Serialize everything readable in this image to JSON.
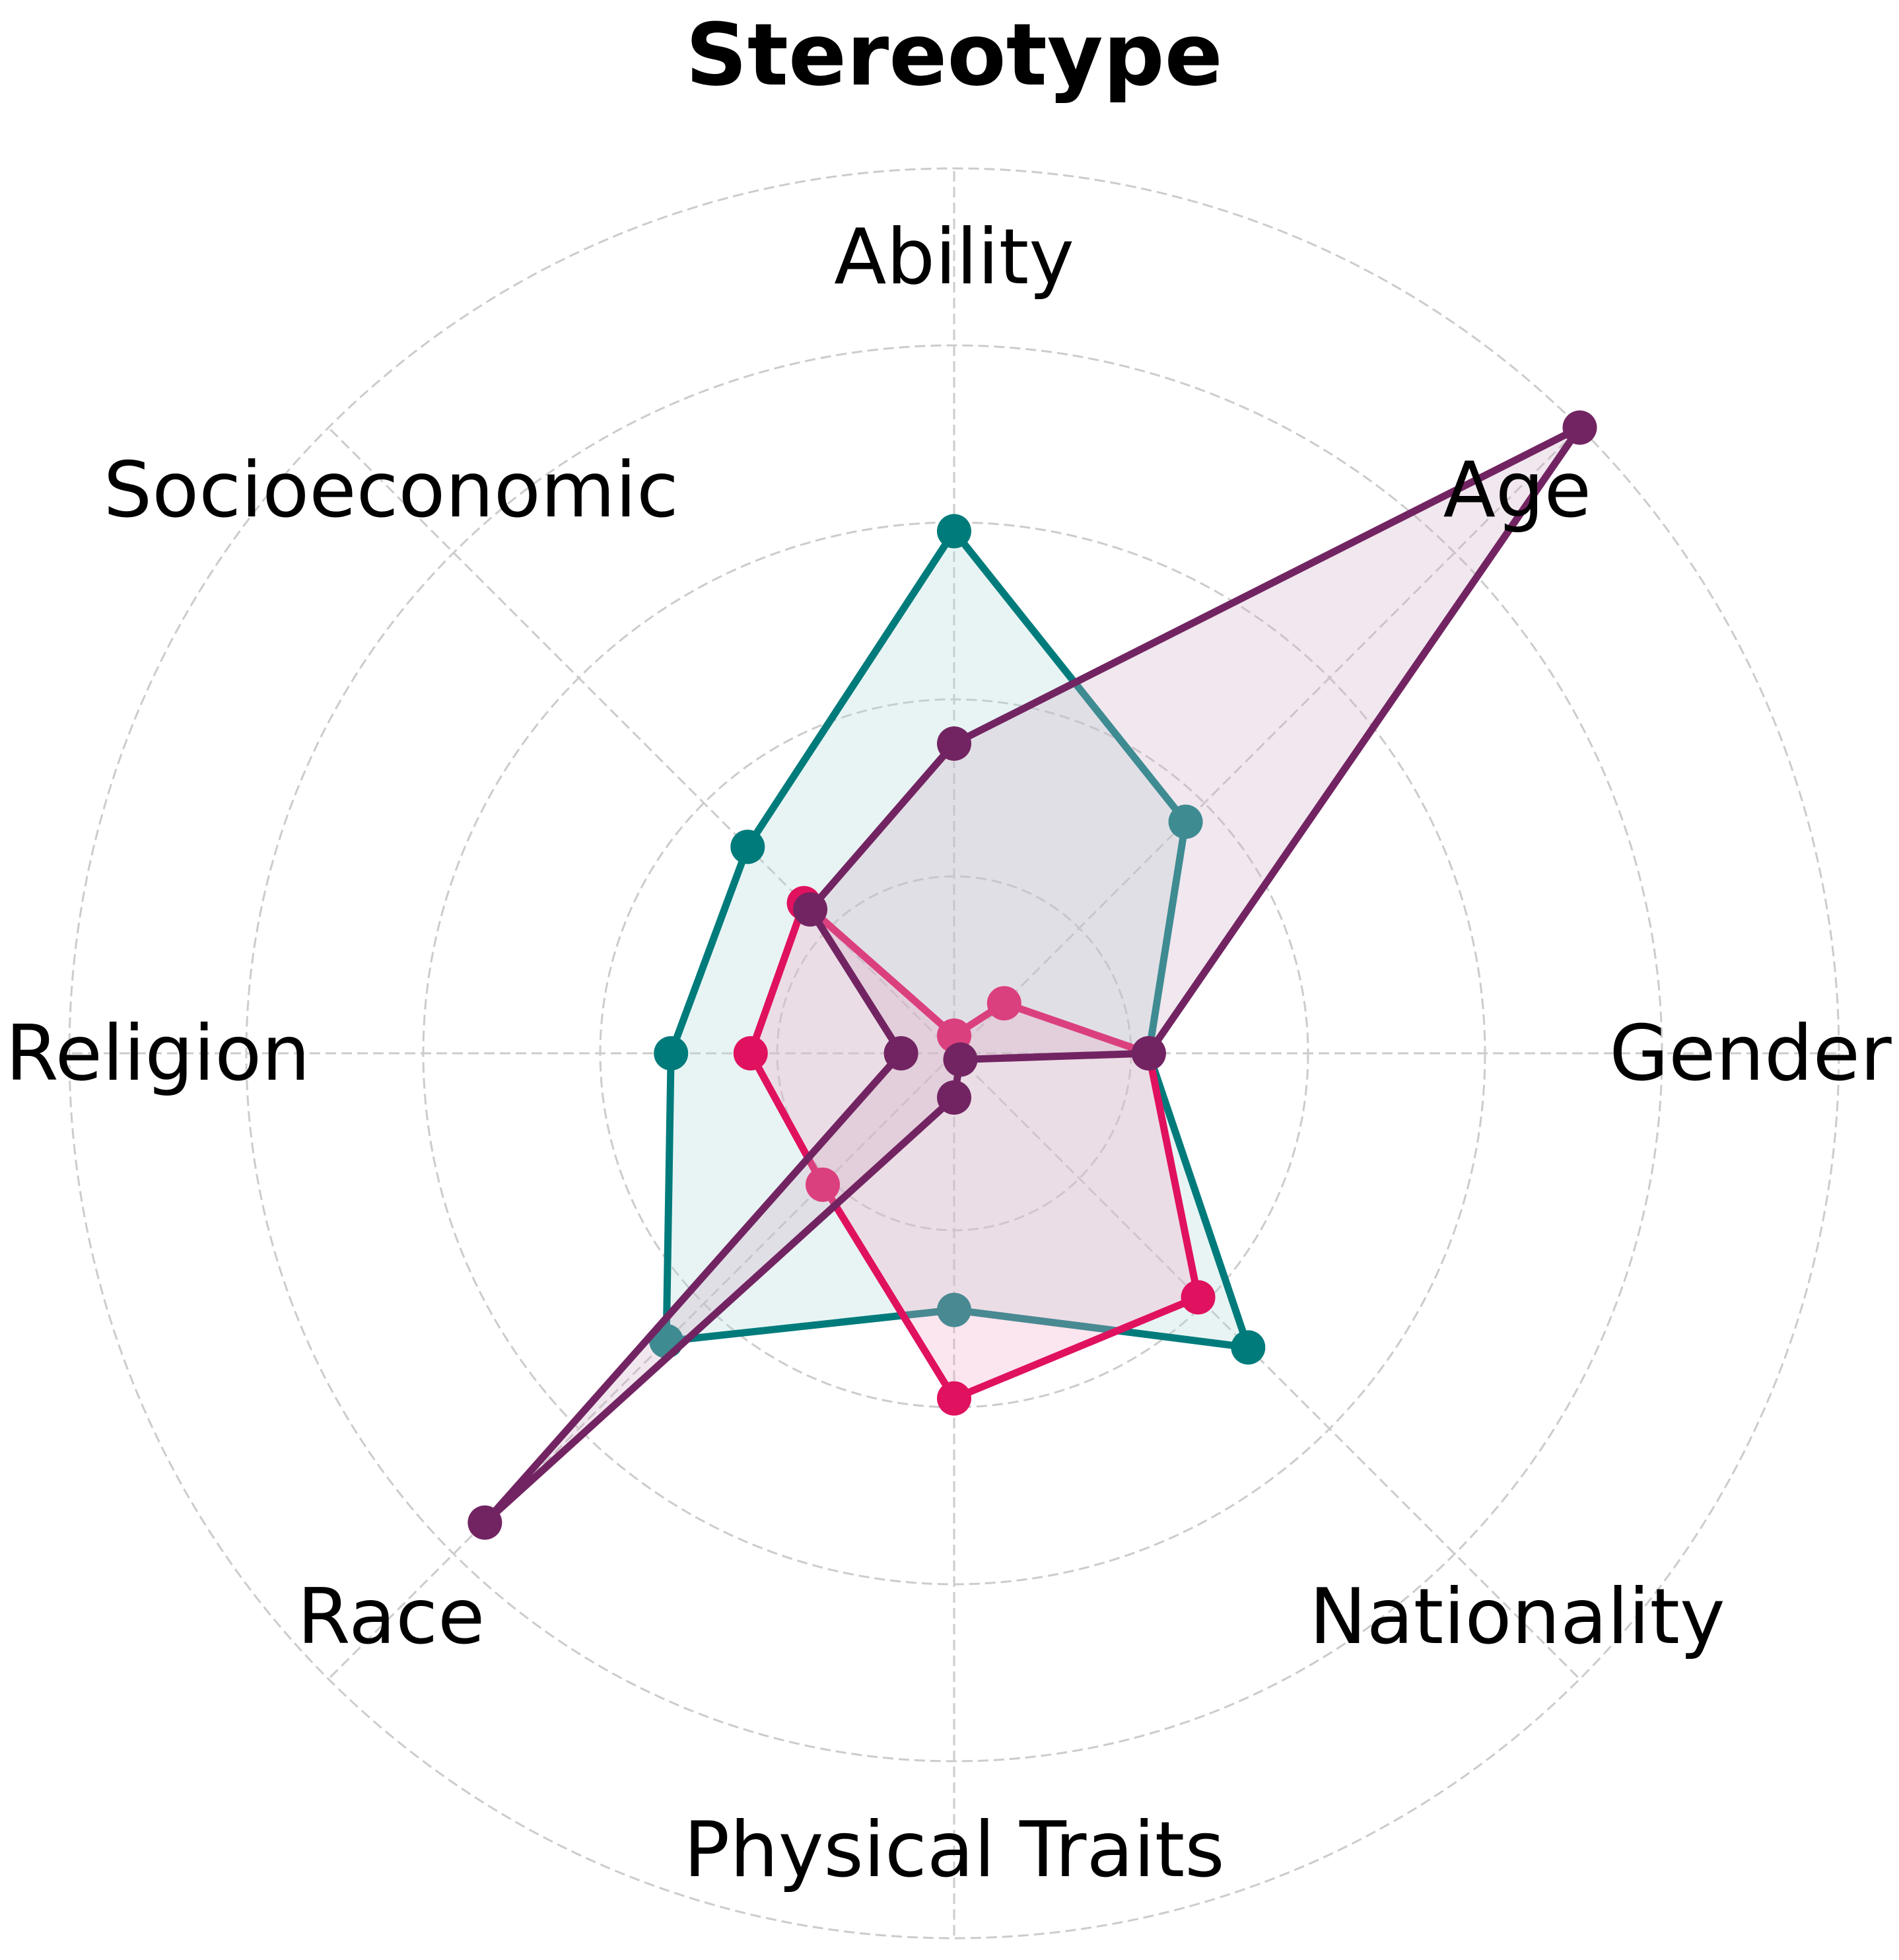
{
  "chart_data": {
    "type": "radar",
    "title": "Stereotype",
    "categories": [
      "Ability",
      "Age",
      "Gender",
      "Nationality",
      "Physical Traits",
      "Race",
      "Religion",
      "Socioeconomic"
    ],
    "rmax": 5,
    "rings": [
      1,
      2,
      3,
      4,
      5
    ],
    "grid": true,
    "series": [
      {
        "color": "#007b7b",
        "fill": "#b3dada",
        "fill_opacity": 0.3,
        "values": [
          2.95,
          1.85,
          1.1,
          2.35,
          1.45,
          2.3,
          1.6,
          1.65
        ]
      },
      {
        "color": "#e0115f",
        "fill": "#f3a8c6",
        "fill_opacity": 0.3,
        "values": [
          0.1,
          0.4,
          1.1,
          1.95,
          1.95,
          1.05,
          1.15,
          1.2
        ]
      },
      {
        "color": "#722462",
        "fill": "#cfb0c6",
        "fill_opacity": 0.3,
        "values": [
          1.75,
          5.0,
          1.1,
          0.05,
          0.25,
          3.75,
          0.3,
          1.15
        ]
      }
    ]
  }
}
